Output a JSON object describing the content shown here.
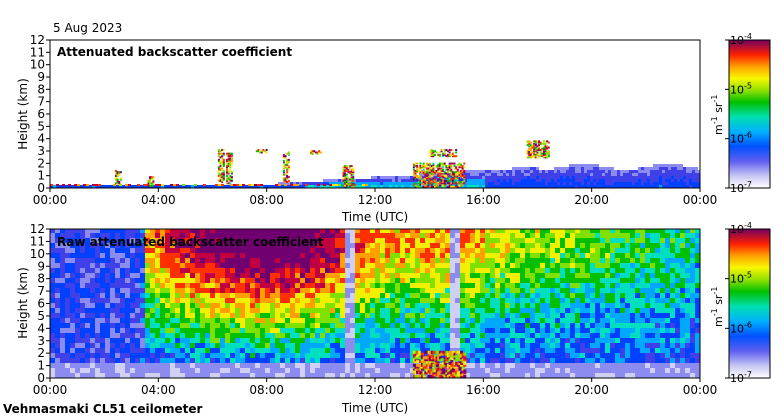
{
  "header": {
    "date": "5 Aug 2023"
  },
  "footer": {
    "instrument": "Vehmasmaki CL51 ceilometer"
  },
  "chart_data": [
    {
      "type": "heatmap",
      "title": "Attenuated backscatter coefficient",
      "xlabel": "Time (UTC)",
      "ylabel": "Height (km)",
      "xlim": [
        "00:00",
        "24:00"
      ],
      "ylim": [
        0,
        12
      ],
      "x_ticks": [
        "00:00",
        "04:00",
        "08:00",
        "12:00",
        "16:00",
        "20:00",
        "00:00"
      ],
      "y_ticks": [
        0,
        1,
        2,
        3,
        4,
        5,
        6,
        7,
        8,
        9,
        10,
        11,
        12
      ],
      "colorbar": {
        "unit_main": "m",
        "unit_main_exp": "-1",
        "unit_second": " sr",
        "unit_second_exp": "-1",
        "scale": "log",
        "range": [
          1e-07,
          0.0001
        ],
        "ticks": [
          {
            "base": "10",
            "exp": "-4"
          },
          {
            "base": "10",
            "exp": "-5"
          },
          {
            "base": "10",
            "exp": "-6"
          },
          {
            "base": "10",
            "exp": "-7"
          }
        ]
      },
      "features": [
        {
          "name": "boundary layer",
          "x_hours": [
            0,
            24
          ],
          "top_km": [
            0.2,
            1.8
          ]
        },
        {
          "name": "cloud",
          "x_hours": [
            6.2,
            6.7
          ],
          "heights_km": [
            0.5,
            3.1
          ]
        },
        {
          "name": "cloud",
          "x_hours": [
            13.3,
            15.5
          ],
          "heights_km": [
            0,
            3.1
          ]
        },
        {
          "name": "cloud",
          "x_hours": [
            17.3,
            18.5
          ],
          "heights_km": [
            2.5,
            4
          ]
        }
      ]
    },
    {
      "type": "heatmap",
      "title": "Raw attenuated backscatter coefficient",
      "xlabel": "Time (UTC)",
      "ylabel": "Height (km)",
      "xlim": [
        "00:00",
        "24:00"
      ],
      "ylim": [
        0,
        12
      ],
      "x_ticks": [
        "00:00",
        "04:00",
        "08:00",
        "12:00",
        "16:00",
        "20:00",
        "00:00"
      ],
      "y_ticks": [
        0,
        1,
        2,
        3,
        4,
        5,
        6,
        7,
        8,
        9,
        10,
        11,
        12
      ],
      "colorbar": {
        "unit_main": "m",
        "unit_main_exp": "-1",
        "unit_second": " sr",
        "unit_second_exp": "-1",
        "scale": "log",
        "range": [
          1e-07,
          0.0001
        ],
        "ticks": [
          {
            "base": "10",
            "exp": "-4"
          },
          {
            "base": "10",
            "exp": "-5"
          },
          {
            "base": "10",
            "exp": "-6"
          },
          {
            "base": "10",
            "exp": "-7"
          }
        ]
      }
    }
  ],
  "colormap": [
    "#d0d0f4",
    "#8c8cf0",
    "#4040e8",
    "#0040ff",
    "#00a8ff",
    "#00e0c0",
    "#00c000",
    "#80e000",
    "#f0f000",
    "#ffa000",
    "#ff3000",
    "#c00040",
    "#700070"
  ]
}
